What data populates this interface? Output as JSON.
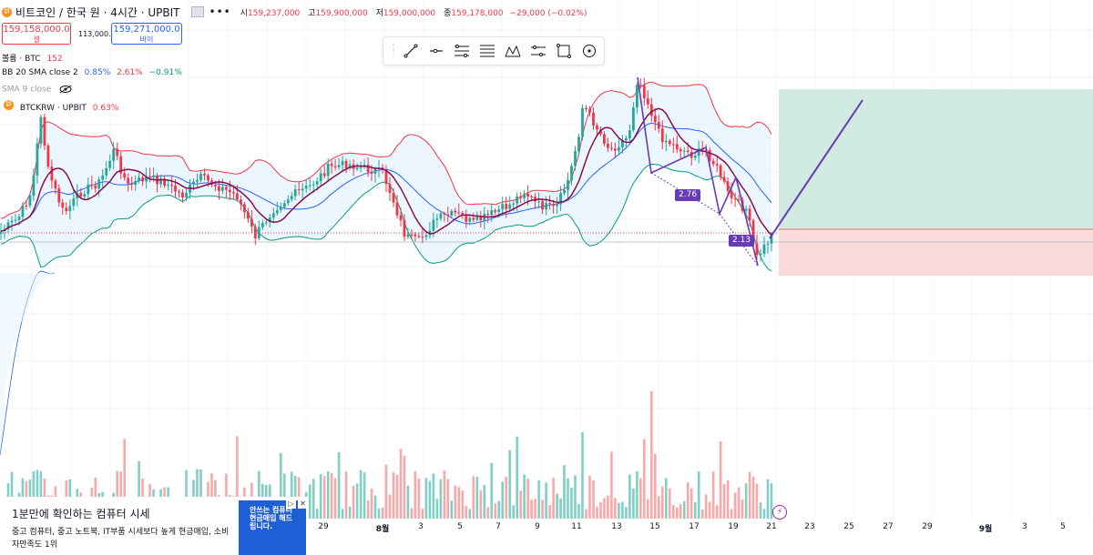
{
  "header": {
    "symbol": "비트코인 / 한국 원 · 4시간 · UPBIT",
    "more": "•••",
    "ohlc": [
      {
        "label": "시",
        "value": "159,237,000"
      },
      {
        "label": "고",
        "value": "159,900,000"
      },
      {
        "label": "저",
        "value": "159,000,000"
      },
      {
        "label": "종",
        "value": "159,178,000"
      },
      {
        "label": "",
        "value": "−29,000 (−0.02%)"
      }
    ]
  },
  "trade": {
    "sell_price": "159,158,000.0",
    "sell_label": "셀",
    "spread": "113,000.0",
    "buy_price": "159,271,000.0",
    "buy_label": "바이"
  },
  "indicators": {
    "volume": {
      "label": "볼륨 · BTC",
      "value": "152"
    },
    "bb": {
      "label": "BB 20 SMA close 2",
      "v1": "0.85%",
      "v2": "2.61%",
      "v3": "−0.91%"
    },
    "sma": {
      "label": "SMA 9 close"
    },
    "compare": {
      "label": "BTCKRW · UPBIT",
      "value": "0.63%"
    }
  },
  "toolbar": {
    "icons": [
      "trend-line-icon",
      "horizontal-ray-icon",
      "parallel-channel-icon",
      "fib-retracement-icon",
      "xabcd-pattern-icon",
      "long-position-icon",
      "rectangle-icon",
      "circle-icon"
    ]
  },
  "annotations": {
    "label1": "2.76",
    "label2": "2.13"
  },
  "x_axis": [
    {
      "label": "29",
      "bold": false
    },
    {
      "label": "8월",
      "bold": true
    },
    {
      "label": "3",
      "bold": false
    },
    {
      "label": "5",
      "bold": false
    },
    {
      "label": "7",
      "bold": false
    },
    {
      "label": "9",
      "bold": false
    },
    {
      "label": "11",
      "bold": false
    },
    {
      "label": "13",
      "bold": false
    },
    {
      "label": "15",
      "bold": false
    },
    {
      "label": "17",
      "bold": false
    },
    {
      "label": "19",
      "bold": false
    },
    {
      "label": "21",
      "bold": false
    },
    {
      "label": "23",
      "bold": false
    },
    {
      "label": "25",
      "bold": false
    },
    {
      "label": "27",
      "bold": false
    },
    {
      "label": "29",
      "bold": false
    },
    {
      "label": "9월",
      "bold": true
    },
    {
      "label": "3",
      "bold": false
    },
    {
      "label": "5",
      "bold": false
    }
  ],
  "ad": {
    "title": "1분만에 확인하는 컴퓨터 시세",
    "body": "중고 컴퓨터, 중고 노트북, IT부품 시세보다 높게 현금매입, 소비자만족도 1위",
    "image_text": "안쓰는 컴퓨터 현금매입 해드립니다.",
    "info": "▷",
    "close": "✕"
  },
  "colors": {
    "up": "#26a69a",
    "down": "#f23645",
    "bb_upper": "#f23645",
    "bb_basis": "#2962ff",
    "bb_lower": "#089981",
    "bb_fill": "#e3f2fd",
    "sma": "#880e4f",
    "pattern": "#673ab7",
    "profit_zone": "#d1ebe3",
    "loss_zone": "#fbdada"
  }
}
